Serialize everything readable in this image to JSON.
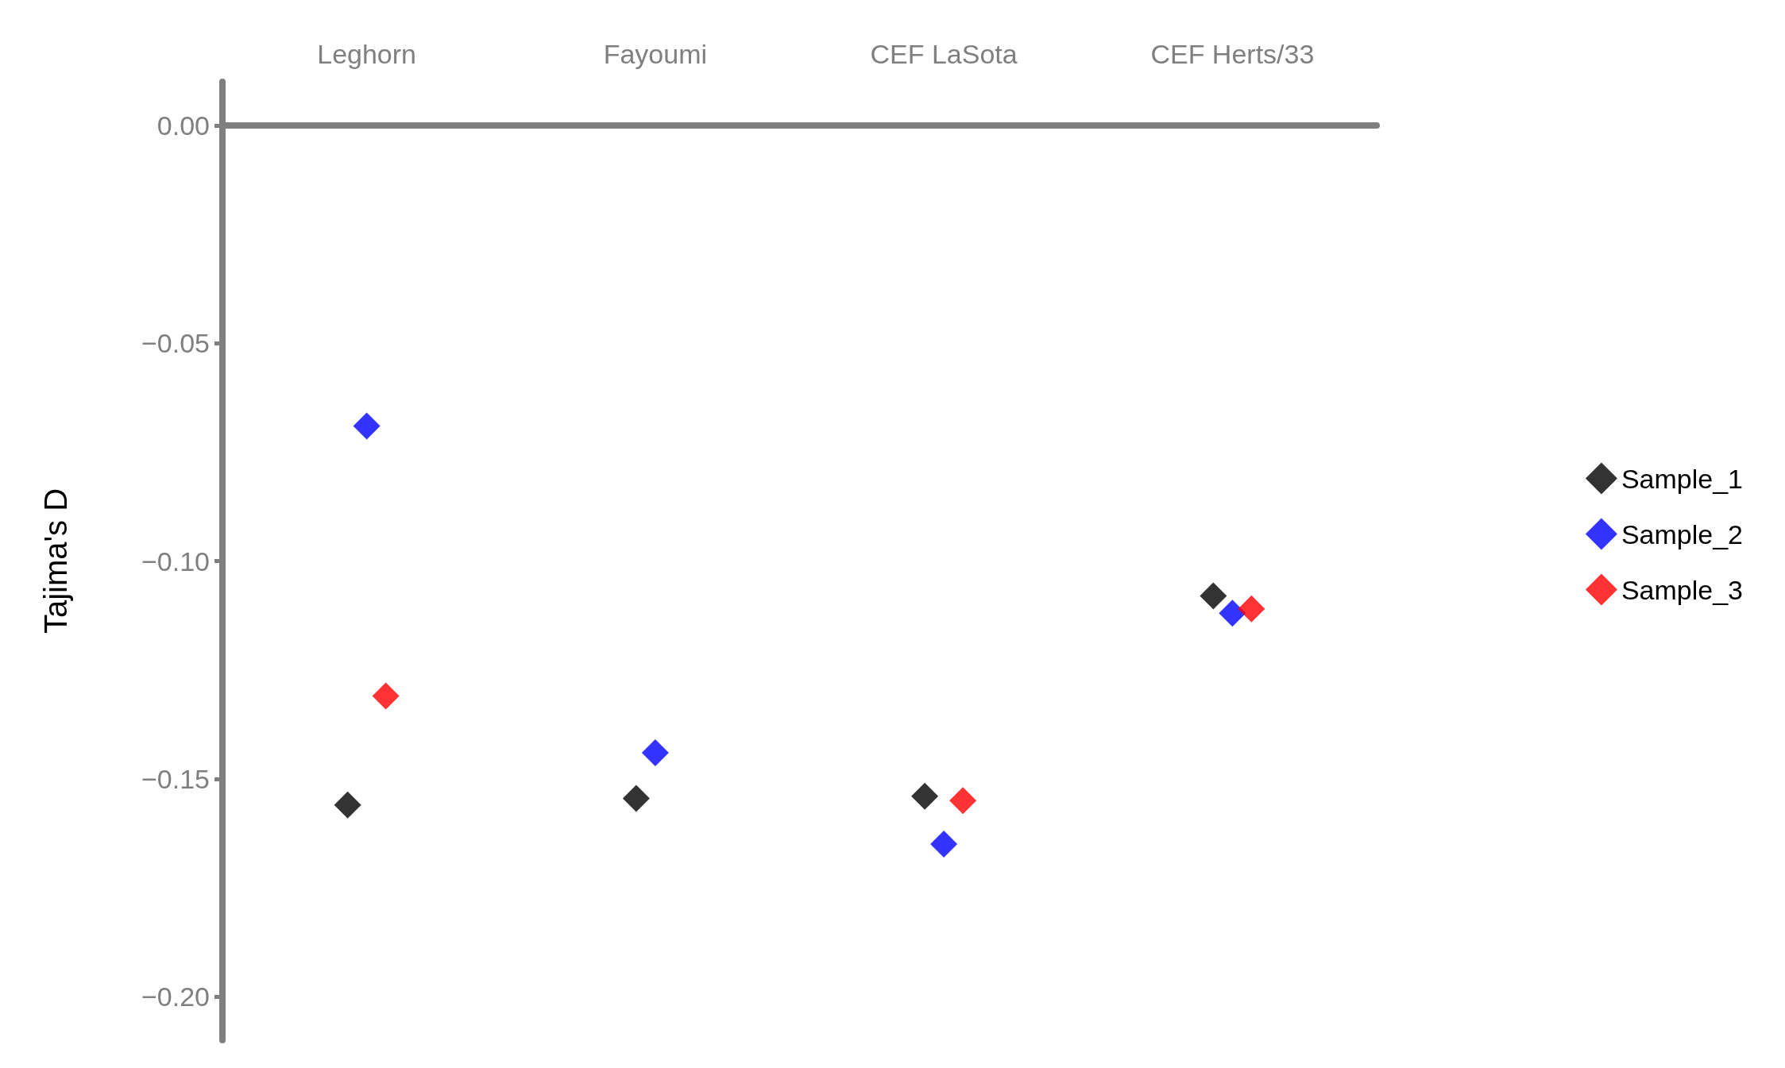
{
  "chart_data": {
    "type": "scatter",
    "ylabel": "Tajima's D",
    "categories": [
      "Leghorn",
      "Fayoumi",
      "CEF LaSota",
      "CEF Herts/33"
    ],
    "series": [
      {
        "name": "Sample_1",
        "color": "#000000",
        "values": [
          -0.156,
          -0.1545,
          -0.154,
          -0.108
        ]
      },
      {
        "name": "Sample_2",
        "color": "#0000ff",
        "values": [
          -0.069,
          -0.144,
          -0.165,
          -0.112
        ]
      },
      {
        "name": "Sample_3",
        "color": "#ff0000",
        "values": [
          -0.131,
          null,
          -0.155,
          -0.111
        ]
      }
    ],
    "ylim": [
      -0.21,
      0.01
    ],
    "yticks": [
      {
        "value": 0,
        "label": "0.00"
      },
      {
        "value": -0.05,
        "label": "−0.05"
      },
      {
        "value": -0.1,
        "label": "−0.10"
      },
      {
        "value": -0.15,
        "label": "−0.15"
      },
      {
        "value": -0.2,
        "label": "−0.20"
      }
    ],
    "marker": "diamond",
    "legend": "right",
    "grid": false
  }
}
